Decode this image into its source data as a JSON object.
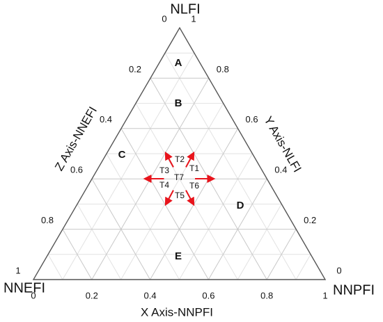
{
  "chart_data": {
    "type": "ternary",
    "vertex_labels": {
      "top": "NLFI",
      "left": "NNEFI",
      "right": "NNPFI"
    },
    "x_label": "X Axis-NNPFI",
    "y_label": "Y Axis-NLFI",
    "z_label": "Z Axis-NNEFI",
    "xlim": [
      0,
      1
    ],
    "ylim": [
      0,
      1
    ],
    "zlim": [
      0,
      1
    ],
    "xticks": [
      0,
      0.2,
      0.4,
      0.6,
      0.8,
      1
    ],
    "yticks": [
      0,
      0.2,
      0.4,
      0.6,
      0.8,
      1
    ],
    "zticks": [
      0,
      0.2,
      0.4,
      0.6,
      0.8,
      1
    ],
    "minor_ticks": [
      0.1,
      0.3,
      0.5,
      0.7,
      0.9
    ],
    "grid": true,
    "regions": [
      "A",
      "B",
      "C",
      "D",
      "E"
    ],
    "transitions": [
      "T1",
      "T2",
      "T3",
      "T4",
      "T5",
      "T6",
      "T7"
    ],
    "arrow_color": "#e8141c"
  }
}
